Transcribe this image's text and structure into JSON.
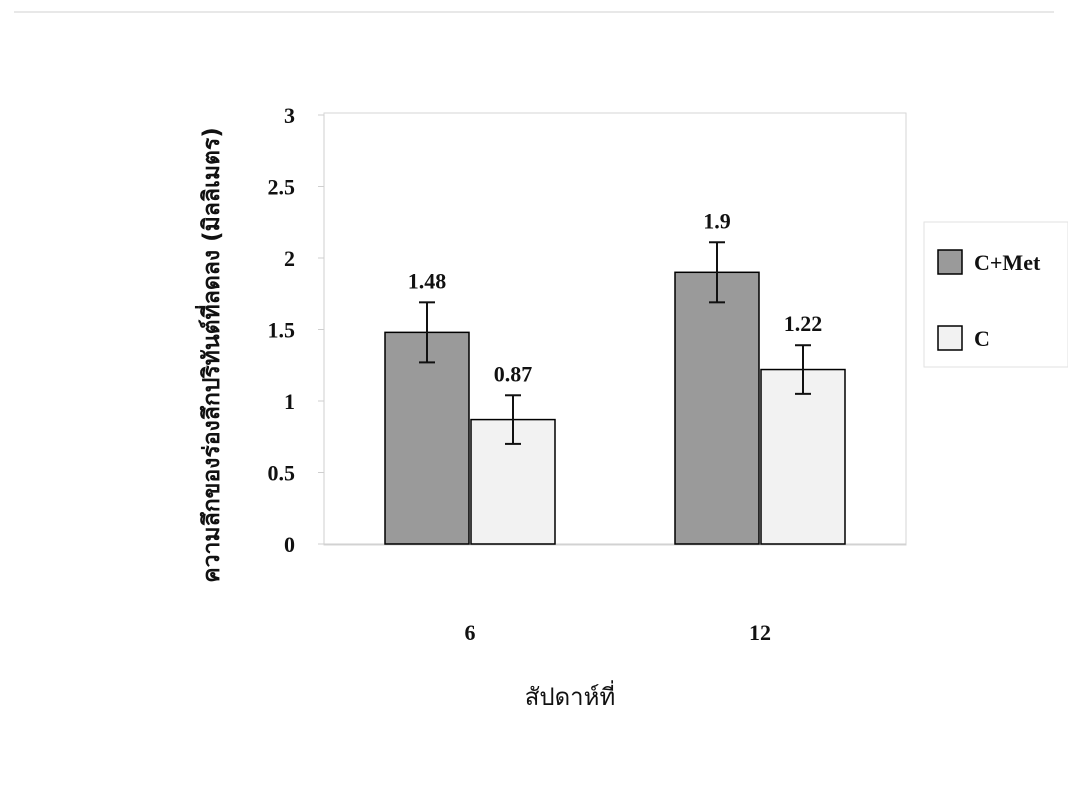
{
  "chart_data": {
    "type": "bar",
    "categories": [
      "6",
      "12"
    ],
    "series": [
      {
        "name": "C+Met",
        "values": [
          1.48,
          1.9
        ],
        "errors": [
          0.21,
          0.21
        ],
        "color": "#9a9a9a"
      },
      {
        "name": "C",
        "values": [
          0.87,
          1.22
        ],
        "errors": [
          0.17,
          0.17
        ],
        "color": "#f2f2f2"
      }
    ],
    "data_labels": [
      [
        "1.48",
        "1.9"
      ],
      [
        "0.87",
        "1.22"
      ]
    ],
    "title": "",
    "xlabel": "สัปดาห์ที่",
    "ylabel": "ความลึกของร่องลึกปริทันต์ที่ลดลง (มิลลิเมตร)",
    "ylim": [
      0,
      3
    ],
    "yticks": [
      "0",
      "0.5",
      "1",
      "1.5",
      "2",
      "2.5",
      "3"
    ],
    "grid": false,
    "legend_position": "right",
    "plot_border": "light-gray",
    "bar_outline_color": "#000000"
  }
}
